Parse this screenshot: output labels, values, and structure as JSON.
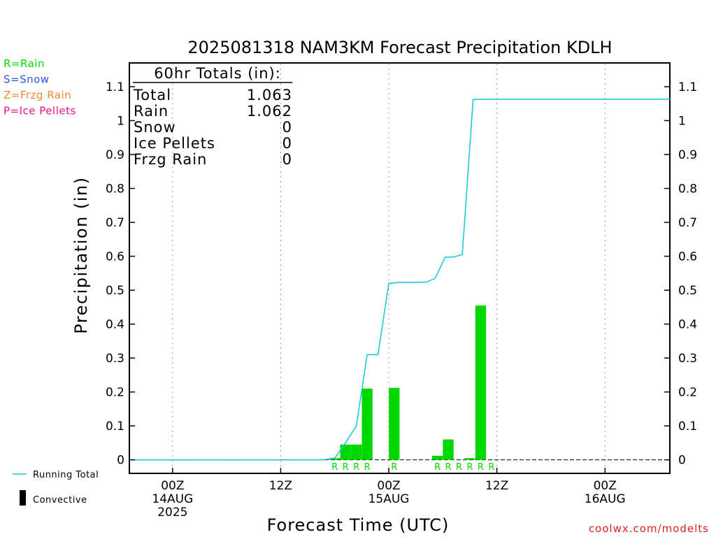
{
  "chart_data": {
    "type": "bar",
    "title": "2025081318 NAM3KM Forecast Precipitation KDLH",
    "ylabel": "Precipitation (in)",
    "xlabel": "Forecast Time (UTC)",
    "ylim": [
      -0.04,
      1.17
    ],
    "xlim": [
      -4,
      46
    ],
    "grid": "vertical dotted",
    "y_ticks": [
      0,
      0.1,
      0.2,
      0.3,
      0.4,
      0.5,
      0.6,
      0.7,
      0.8,
      0.9,
      1,
      1.1
    ],
    "y_tick_labels": [
      "0",
      "0.1",
      "0.2",
      "0.3",
      "0.4",
      "0.5",
      "0.6",
      "0.7",
      "0.8",
      "0.9",
      "1",
      "1.1"
    ],
    "x_ticks": [
      {
        "x": 0,
        "lines": [
          "00Z",
          "14AUG",
          "2025"
        ]
      },
      {
        "x": 10,
        "lines": [
          "12Z"
        ]
      },
      {
        "x": 20,
        "lines": [
          "00Z",
          "15AUG"
        ]
      },
      {
        "x": 30,
        "lines": [
          "12Z"
        ]
      },
      {
        "x": 40,
        "lines": [
          "00Z",
          "16AUG"
        ]
      }
    ],
    "bars_rain": [
      {
        "x": 15,
        "value": 0.005
      },
      {
        "x": 16,
        "value": 0.045
      },
      {
        "x": 17,
        "value": 0.045
      },
      {
        "x": 18,
        "value": 0.21
      },
      {
        "x": 20.5,
        "value": 0.212
      },
      {
        "x": 24.5,
        "value": 0.012
      },
      {
        "x": 25.5,
        "value": 0.06
      },
      {
        "x": 27.5,
        "value": 0.005
      },
      {
        "x": 28.5,
        "value": 0.455
      }
    ],
    "ptype_markers": [
      {
        "x": 15,
        "label": "R"
      },
      {
        "x": 16,
        "label": "R"
      },
      {
        "x": 17,
        "label": "R"
      },
      {
        "x": 18,
        "label": "R"
      },
      {
        "x": 20.5,
        "label": "R"
      },
      {
        "x": 24.5,
        "label": "R"
      },
      {
        "x": 25.5,
        "label": "R"
      },
      {
        "x": 26.5,
        "label": "R"
      },
      {
        "x": 27.5,
        "label": "R"
      },
      {
        "x": 28.5,
        "label": "R"
      },
      {
        "x": 29.5,
        "label": "R"
      }
    ],
    "running_total": {
      "name": "Running Total",
      "points": [
        [
          -4,
          0
        ],
        [
          14,
          0
        ],
        [
          15,
          0.005
        ],
        [
          16,
          0.05
        ],
        [
          17,
          0.1
        ],
        [
          18,
          0.31
        ],
        [
          19,
          0.31
        ],
        [
          20,
          0.52
        ],
        [
          21,
          0.523
        ],
        [
          22.5,
          0.523
        ],
        [
          23.5,
          0.524
        ],
        [
          24.3,
          0.535
        ],
        [
          25.2,
          0.597
        ],
        [
          26,
          0.598
        ],
        [
          26.8,
          0.605
        ],
        [
          27.8,
          1.062
        ],
        [
          29,
          1.063
        ],
        [
          46,
          1.063
        ]
      ]
    },
    "totals_box": {
      "heading": "60hr Totals (in):",
      "rows": [
        {
          "label": "Total",
          "value": "1.063"
        },
        {
          "label": "Rain",
          "value": "1.062"
        },
        {
          "label": "Snow",
          "value": "0"
        },
        {
          "label": "Ice Pellets",
          "value": "0"
        },
        {
          "label": "Frzg Rain",
          "value": "0"
        }
      ]
    },
    "ptype_legend": [
      {
        "text": "R=Rain",
        "color": "#00dd00"
      },
      {
        "text": "S=Snow",
        "color": "#3355ee"
      },
      {
        "text": "Z=Frzg Rain",
        "color": "#ee8833"
      },
      {
        "text": "P=Ice Pellets",
        "color": "#ee1188"
      }
    ],
    "series_legend": [
      {
        "text": "Running Total",
        "symbol": "line",
        "color": "#10c8d8"
      },
      {
        "text": "Convective",
        "symbol": "bar",
        "color": "#000000"
      }
    ],
    "colors": {
      "rain_bar": "#00d800",
      "running_total": "#10c8d8",
      "grid": "#999999",
      "axis": "#000000"
    },
    "credit": "coolwx.com/modelts"
  }
}
